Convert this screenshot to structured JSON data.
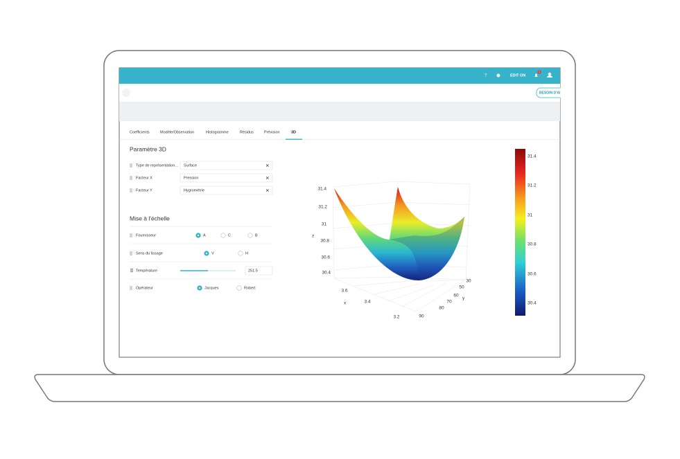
{
  "header": {
    "help": "?",
    "edit": "EDIT ON",
    "notifications": "1",
    "button": "BESOIN D'AI"
  },
  "tabs": [
    "Coefficients",
    "Modèle/Observation",
    "Histogramme",
    "Résidus",
    "Prévision",
    "3D"
  ],
  "panel": {
    "title": "Paramètre 3D",
    "fields": [
      {
        "label": "Type de représentation...",
        "value": "Surface"
      },
      {
        "label": "Facteur X",
        "value": "Pression"
      },
      {
        "label": "Facteur Y",
        "value": "Hygrométrie"
      }
    ],
    "scaling_title": "Mise à l'échelle",
    "scaling": [
      {
        "label": "Fournisseur",
        "options": [
          {
            "text": "A",
            "selected": true
          },
          {
            "text": "C",
            "selected": false
          },
          {
            "text": "B",
            "selected": false
          }
        ]
      },
      {
        "label": "Sens du lissage",
        "options": [
          {
            "text": "V",
            "selected": true
          },
          {
            "text": "H",
            "selected": false
          }
        ]
      },
      {
        "label": "Température",
        "value": "251.5"
      },
      {
        "label": "Opérateur",
        "options": [
          {
            "text": "Jacques",
            "selected": true
          },
          {
            "text": "Robert",
            "selected": false
          }
        ]
      }
    ]
  },
  "chart": {
    "z_label": "z",
    "x_label": "x",
    "y_label": "y",
    "z_ticks": [
      "31.4",
      "31.2",
      "31",
      "30.8",
      "30.6",
      "30.4"
    ],
    "x_ticks": [
      "3.6",
      "3.4",
      "3.2"
    ],
    "y_ticks": [
      "30",
      "50",
      "60",
      "70",
      "80",
      "90"
    ],
    "colorbar_ticks": [
      "31.4",
      "31.2",
      "31",
      "30.8",
      "30.6",
      "30.4"
    ]
  }
}
